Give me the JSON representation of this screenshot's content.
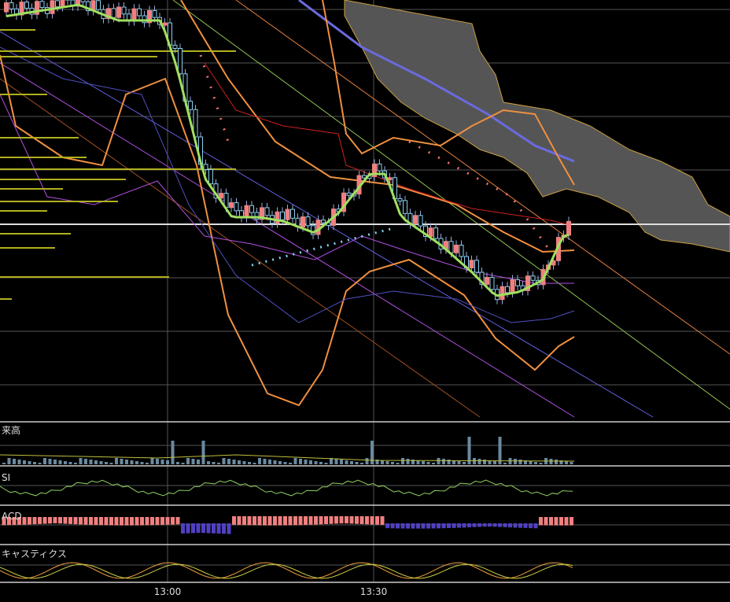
{
  "panels": {
    "volume": "来高",
    "rsi": "SI",
    "macd": "ACD",
    "stochastics": "キャスティクス"
  },
  "time_axis": [
    "13:00",
    "13:30"
  ]
}
